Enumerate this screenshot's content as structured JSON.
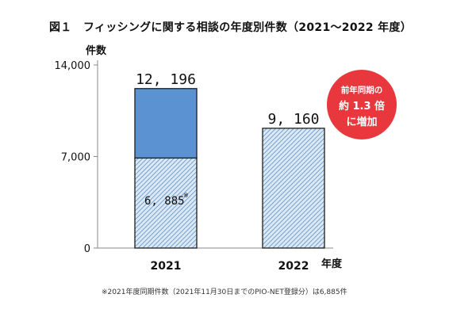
{
  "title": "図１　フィッシングに関する相談の年度別件数（2021～2022 年度）",
  "note": "※2021年度同期件数（2021年11月30日までのPIO-NET登録分）は6,885件",
  "chart_data": {
    "type": "bar",
    "title": "図１　フィッシングに関する相談の年度別件数（2021～2022 年度）",
    "xlabel": "年度",
    "ylabel": "件数",
    "categories": [
      "2021",
      "2022"
    ],
    "series": [
      {
        "values": [
          6885,
          9160
        ]
      },
      {
        "values": [
          5311,
          null
        ]
      }
    ],
    "totals": [
      12196,
      9160
    ],
    "total_labels": [
      "12, 196",
      "9, 160"
    ],
    "inner_label": "6, 885",
    "inner_label_mark": "※",
    "ylim": [
      0,
      14000
    ],
    "yticks": [
      0,
      7000,
      14000
    ],
    "ytick_labels": [
      "0",
      "7,000",
      "14,000"
    ],
    "grid": false,
    "colors": {
      "hatch": "#a9c9e4",
      "hatch_line": "#2e6fa8",
      "solid": "#5b93d2",
      "outline": "#1c1c1c"
    },
    "annotation": {
      "lines": [
        "前年同期の",
        "約 1.3 倍",
        "に増加"
      ],
      "color": "#e8383d"
    }
  }
}
